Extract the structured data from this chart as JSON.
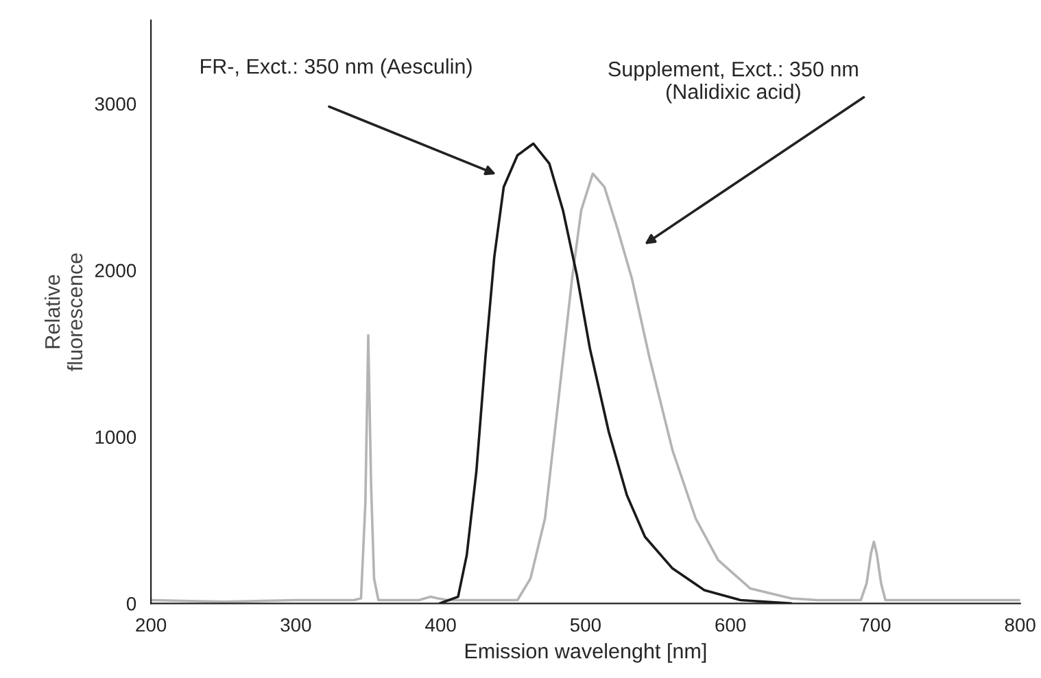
{
  "chart_data": {
    "type": "line",
    "xlabel": "Emission wavelenght [nm]",
    "ylabel": "Relative\nfluorescence",
    "xlim": [
      200,
      800
    ],
    "xticks": [
      200,
      300,
      400,
      500,
      600,
      700,
      800
    ],
    "ylim": [
      0,
      3500
    ],
    "yticks": [
      0,
      1000,
      2000,
      3000
    ],
    "grid": false,
    "legend": false,
    "marker": "none",
    "line_style": "solid",
    "series": [
      {
        "color": "#b4b4b4",
        "x": [
          200,
          250,
          300,
          340,
          345,
          348,
          350,
          352,
          354,
          357,
          370,
          385,
          393,
          398,
          405,
          440,
          453,
          462,
          472,
          481,
          490.7,
          497,
          505,
          513,
          522,
          532,
          544,
          560,
          576,
          591.5,
          613.6,
          642,
          660,
          690,
          694,
          697,
          699,
          701,
          704,
          707,
          750,
          800
        ],
        "values": [
          20,
          10,
          20,
          20,
          30,
          600,
          1610,
          700,
          150,
          20,
          20,
          20,
          40,
          30,
          20,
          20,
          20,
          150,
          510,
          1200,
          1950,
          2360,
          2580,
          2500,
          2250,
          1950,
          1480,
          920,
          510,
          260,
          90,
          30,
          20,
          20,
          120,
          300,
          370,
          300,
          120,
          20,
          20,
          20
        ]
      },
      {
        "color": "#1a1a1a",
        "x": [
          399.4,
          412,
          418,
          424.6,
          430.9,
          437,
          443.5,
          453,
          464,
          475,
          484.4,
          494,
          503,
          516,
          528.5,
          541,
          560,
          582,
          607,
          642
        ],
        "values": [
          0,
          40,
          290,
          790,
          1480,
          2080,
          2500,
          2690,
          2760,
          2640,
          2360,
          1970,
          1530,
          1030,
          650,
          400,
          210,
          80,
          20,
          0
        ]
      }
    ],
    "annotations": [
      "FR-, Exct.: 350 nm (Aesculin)",
      "Supplement, Exct.: 350 nm\n(Nalidixic acid)"
    ]
  }
}
